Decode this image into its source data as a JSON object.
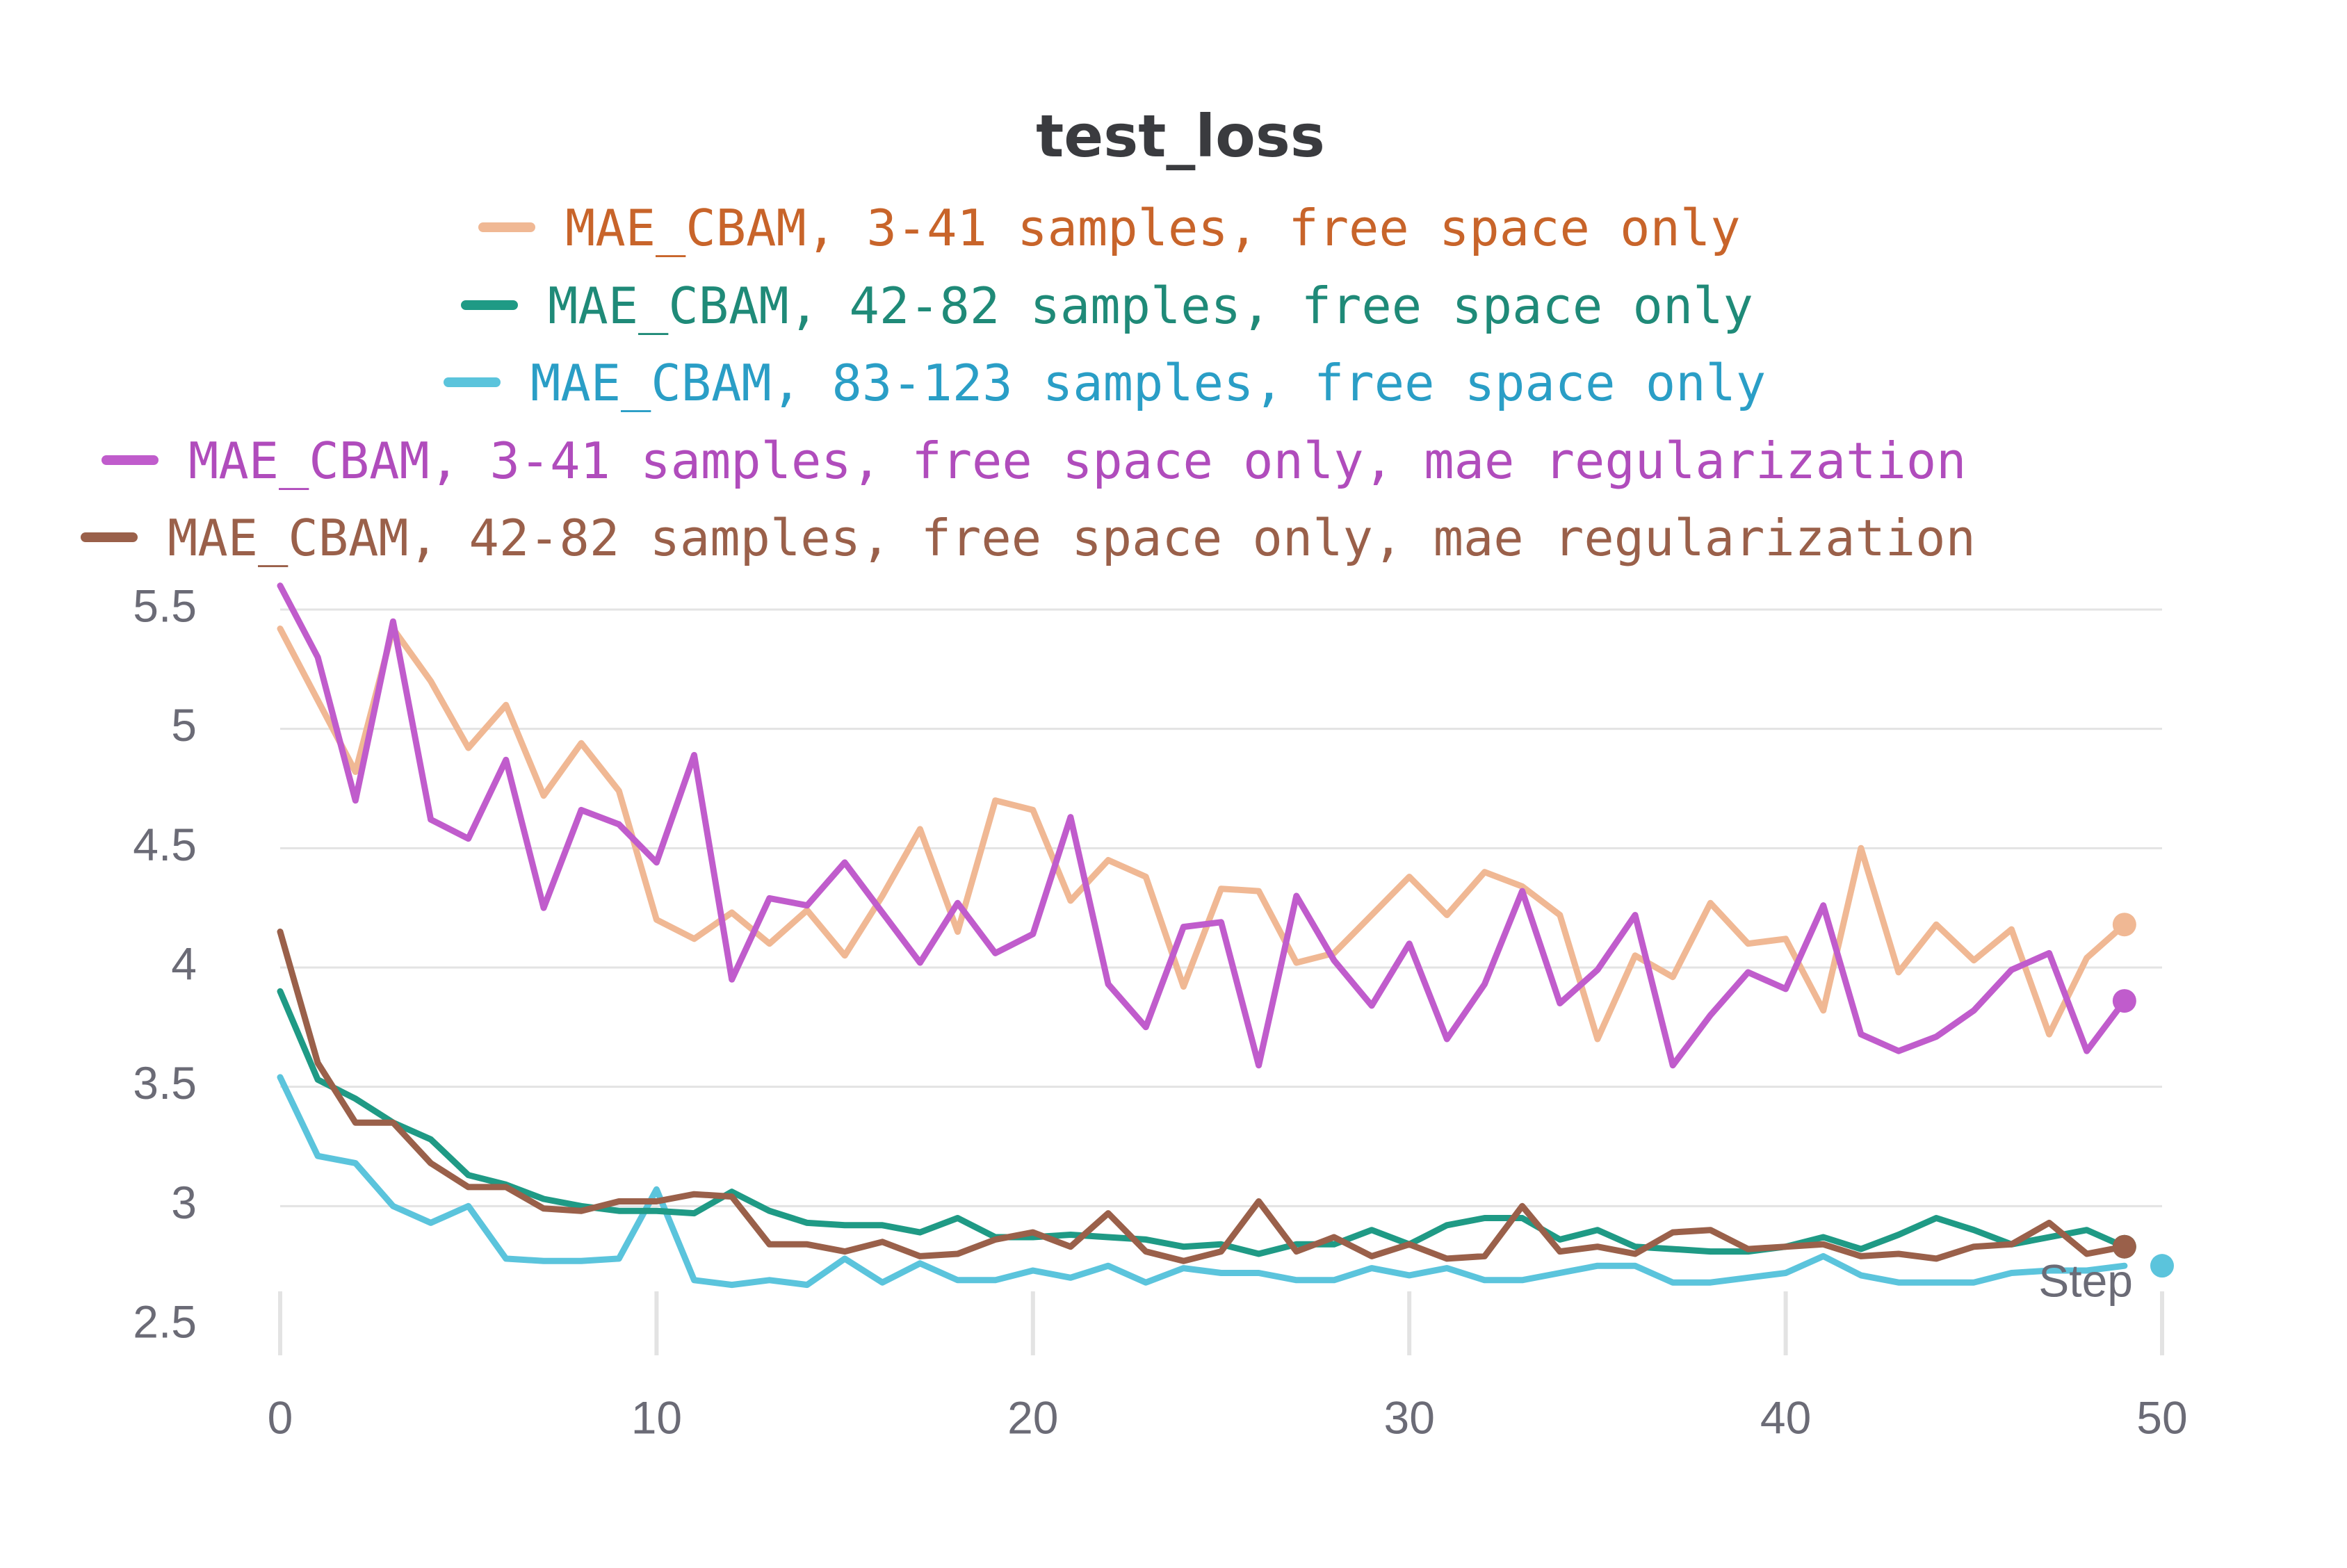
{
  "chart_data": {
    "type": "line",
    "title": "test_loss",
    "xlabel": "Step",
    "ylabel": "",
    "xlim": [
      0,
      50
    ],
    "ylim": [
      2.5,
      5.5
    ],
    "xticks": [
      "0",
      "10",
      "20",
      "30",
      "40",
      "50"
    ],
    "yticks": [
      "2.5",
      "3",
      "3.5",
      "4",
      "4.5",
      "5",
      "5.5"
    ],
    "grid": true,
    "legend_position": "top-center",
    "x": [
      0,
      1,
      2,
      3,
      4,
      5,
      6,
      7,
      8,
      9,
      10,
      11,
      12,
      13,
      14,
      15,
      16,
      17,
      18,
      19,
      20,
      21,
      22,
      23,
      24,
      25,
      26,
      27,
      28,
      29,
      30,
      31,
      32,
      33,
      34,
      35,
      36,
      37,
      38,
      39,
      40,
      41,
      42,
      43,
      44,
      45,
      46,
      47,
      48,
      49
    ],
    "series": [
      {
        "name": "MAE_CBAM, 3-41 samples, free space only",
        "color": "#f0b894",
        "text_color": "#c8642a",
        "values": [
          5.42,
          5.12,
          4.82,
          5.42,
          5.2,
          4.92,
          5.1,
          4.72,
          4.94,
          4.74,
          4.2,
          4.12,
          4.23,
          4.1,
          4.24,
          4.05,
          4.3,
          4.58,
          4.15,
          4.7,
          4.66,
          4.28,
          4.45,
          4.38,
          3.92,
          4.33,
          4.32,
          4.02,
          4.06,
          4.22,
          4.38,
          4.22,
          4.4,
          4.34,
          4.22,
          3.7,
          4.05,
          3.96,
          4.27,
          4.1,
          4.12,
          3.82,
          4.5,
          3.98,
          4.18,
          4.03,
          4.16,
          3.72,
          4.04,
          4.18
        ]
      },
      {
        "name": "MAE_CBAM, 42-82 samples, free space only",
        "color": "#1f9a85",
        "text_color": "#1f8a78",
        "values": [
          3.9,
          3.53,
          3.45,
          3.35,
          3.28,
          3.13,
          3.09,
          3.03,
          3.0,
          2.98,
          2.98,
          2.97,
          3.06,
          2.98,
          2.93,
          2.92,
          2.92,
          2.89,
          2.95,
          2.87,
          2.87,
          2.88,
          2.87,
          2.86,
          2.83,
          2.84,
          2.8,
          2.84,
          2.84,
          2.9,
          2.84,
          2.92,
          2.95,
          2.95,
          2.86,
          2.9,
          2.83,
          2.82,
          2.81,
          2.81,
          2.83,
          2.87,
          2.82,
          2.88,
          2.95,
          2.9,
          2.84,
          2.87,
          2.9,
          2.83
        ]
      },
      {
        "name": "MAE_CBAM, 83-123 samples, free space only",
        "color": "#5bc4dc",
        "text_color": "#2a9ec6",
        "values": [
          3.54,
          3.21,
          3.18,
          3.0,
          2.93,
          3.0,
          2.78,
          2.77,
          2.77,
          2.78,
          3.07,
          2.69,
          2.67,
          2.69,
          2.67,
          2.78,
          2.68,
          2.76,
          2.69,
          2.69,
          2.73,
          2.7,
          2.75,
          2.68,
          2.74,
          2.72,
          2.72,
          2.69,
          2.69,
          2.74,
          2.71,
          2.74,
          2.69,
          2.69,
          2.72,
          2.75,
          2.75,
          2.68,
          2.68,
          2.7,
          2.72,
          2.79,
          2.71,
          2.68,
          2.68,
          2.68,
          2.72,
          2.73,
          2.73,
          2.75
        ]
      },
      {
        "name": "MAE_CBAM, 3-41 samples, free space only, mae regularization",
        "color": "#c05ccc",
        "text_color": "#b04cbc",
        "values": [
          5.6,
          5.3,
          4.7,
          5.45,
          4.62,
          4.54,
          4.87,
          4.25,
          4.66,
          4.6,
          4.44,
          4.89,
          3.95,
          4.29,
          4.26,
          4.44,
          4.23,
          4.02,
          4.27,
          4.06,
          4.14,
          4.63,
          3.93,
          3.75,
          4.17,
          4.19,
          3.59,
          4.3,
          4.03,
          3.84,
          4.1,
          3.7,
          3.93,
          4.32,
          3.85,
          3.99,
          4.22,
          3.59,
          3.8,
          3.98,
          3.91,
          4.26,
          3.72,
          3.65,
          3.71,
          3.82,
          3.99,
          4.06,
          3.65,
          3.86
        ]
      },
      {
        "name": "MAE_CBAM, 42-82 samples, free space only, mae regularization",
        "color": "#9a604a",
        "text_color": "#9a604a",
        "values": [
          4.15,
          3.6,
          3.35,
          3.35,
          3.18,
          3.08,
          3.08,
          2.99,
          2.98,
          3.02,
          3.02,
          3.05,
          3.04,
          2.84,
          2.84,
          2.81,
          2.85,
          2.79,
          2.8,
          2.86,
          2.89,
          2.83,
          2.97,
          2.81,
          2.77,
          2.81,
          3.02,
          2.81,
          2.87,
          2.79,
          2.84,
          2.78,
          2.79,
          3.0,
          2.81,
          2.83,
          2.8,
          2.89,
          2.9,
          2.82,
          2.83,
          2.84,
          2.79,
          2.8,
          2.78,
          2.83,
          2.84,
          2.93,
          2.8,
          2.83
        ]
      }
    ]
  }
}
